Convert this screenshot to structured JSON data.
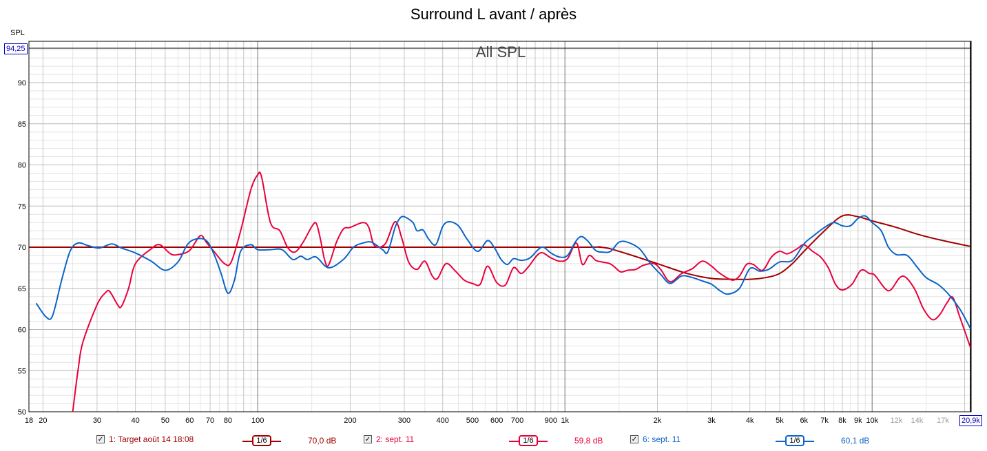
{
  "chart_data": {
    "type": "line",
    "title": "Surround L avant / après",
    "watermark": "All SPL",
    "ylabel": "SPL",
    "ylim": [
      50,
      94.25
    ],
    "ylim_top_label": "94,25",
    "y_ticks": [
      90,
      85,
      80,
      75,
      70,
      65,
      60,
      55,
      50
    ],
    "xlim": [
      18,
      20900
    ],
    "x_scale": "log",
    "xlim_right_label": "20,9k",
    "x_ticks": [
      {
        "v": 18,
        "label": "18"
      },
      {
        "v": 20,
        "label": "20"
      },
      {
        "v": 30,
        "label": "30"
      },
      {
        "v": 40,
        "label": "40"
      },
      {
        "v": 50,
        "label": "50"
      },
      {
        "v": 60,
        "label": "60"
      },
      {
        "v": 70,
        "label": "70"
      },
      {
        "v": 80,
        "label": "80"
      },
      {
        "v": 100,
        "label": "100"
      },
      {
        "v": 200,
        "label": "200"
      },
      {
        "v": 300,
        "label": "300"
      },
      {
        "v": 400,
        "label": "400"
      },
      {
        "v": 500,
        "label": "500"
      },
      {
        "v": 600,
        "label": "600"
      },
      {
        "v": 700,
        "label": "700"
      },
      {
        "v": 900,
        "label": "900"
      },
      {
        "v": 1000,
        "label": "1k"
      },
      {
        "v": 2000,
        "label": "2k"
      },
      {
        "v": 3000,
        "label": "3k"
      },
      {
        "v": 4000,
        "label": "4k"
      },
      {
        "v": 5000,
        "label": "5k"
      },
      {
        "v": 6000,
        "label": "6k"
      },
      {
        "v": 7000,
        "label": "7k"
      },
      {
        "v": 8000,
        "label": "8k"
      },
      {
        "v": 9000,
        "label": "9k"
      },
      {
        "v": 10000,
        "label": "10k"
      },
      {
        "v": 12000,
        "label": "12k",
        "faded": true
      },
      {
        "v": 14000,
        "label": "14k",
        "faded": true
      },
      {
        "v": 17000,
        "label": "17k",
        "faded": true
      }
    ],
    "grid": true,
    "series": [
      {
        "name": "1: Target août 14 18:08",
        "color": "#a00000",
        "smoothing": "1/6",
        "level": "70,0 dB",
        "points": [
          [
            18,
            70
          ],
          [
            100,
            70
          ],
          [
            1000,
            70
          ],
          [
            1300,
            70
          ],
          [
            1500,
            69.5
          ],
          [
            2000,
            68
          ],
          [
            2500,
            66.8
          ],
          [
            3000,
            66.2
          ],
          [
            3500,
            66.1
          ],
          [
            4000,
            66.1
          ],
          [
            4500,
            66.3
          ],
          [
            5000,
            66.8
          ],
          [
            5500,
            68
          ],
          [
            6000,
            69.5
          ],
          [
            7000,
            72
          ],
          [
            8000,
            73.8
          ],
          [
            9000,
            73.7
          ],
          [
            10000,
            73.2
          ],
          [
            12000,
            72.4
          ],
          [
            14000,
            71.6
          ],
          [
            17000,
            70.8
          ],
          [
            20900,
            70.1
          ]
        ]
      },
      {
        "name": "2: sept. 11",
        "color": "#e8003c",
        "smoothing": "1/6",
        "level": "59,8 dB",
        "points": [
          [
            25,
            50
          ],
          [
            26,
            55
          ],
          [
            27,
            58.5
          ],
          [
            30,
            63
          ],
          [
            32,
            64.5
          ],
          [
            33,
            64.6
          ],
          [
            35,
            63
          ],
          [
            36,
            62.8
          ],
          [
            38,
            65
          ],
          [
            40,
            68
          ],
          [
            45,
            69.8
          ],
          [
            48,
            70.3
          ],
          [
            52,
            69.2
          ],
          [
            55,
            69.1
          ],
          [
            60,
            69.6
          ],
          [
            65,
            71.4
          ],
          [
            68,
            70.6
          ],
          [
            72,
            69.5
          ],
          [
            78,
            68
          ],
          [
            82,
            68.2
          ],
          [
            88,
            72
          ],
          [
            95,
            77
          ],
          [
            100,
            78.8
          ],
          [
            103,
            78.5
          ],
          [
            110,
            73
          ],
          [
            118,
            72
          ],
          [
            125,
            70
          ],
          [
            132,
            69.4
          ],
          [
            140,
            70.5
          ],
          [
            150,
            72.5
          ],
          [
            155,
            72.9
          ],
          [
            160,
            71
          ],
          [
            165,
            68.5
          ],
          [
            170,
            67.8
          ],
          [
            180,
            70.5
          ],
          [
            190,
            72.2
          ],
          [
            200,
            72.4
          ],
          [
            220,
            73
          ],
          [
            230,
            72.4
          ],
          [
            240,
            70.2
          ],
          [
            260,
            70.4
          ],
          [
            280,
            73.1
          ],
          [
            295,
            71
          ],
          [
            310,
            68.2
          ],
          [
            330,
            67.3
          ],
          [
            350,
            68.3
          ],
          [
            370,
            66.5
          ],
          [
            385,
            66.2
          ],
          [
            410,
            68
          ],
          [
            440,
            67.1
          ],
          [
            470,
            66
          ],
          [
            500,
            65.6
          ],
          [
            530,
            65.5
          ],
          [
            560,
            67.7
          ],
          [
            600,
            65.7
          ],
          [
            640,
            65.4
          ],
          [
            680,
            67.5
          ],
          [
            720,
            66.8
          ],
          [
            760,
            67.6
          ],
          [
            830,
            69.3
          ],
          [
            900,
            68.7
          ],
          [
            960,
            68.3
          ],
          [
            1020,
            68.6
          ],
          [
            1090,
            70.5
          ],
          [
            1140,
            67.9
          ],
          [
            1200,
            69
          ],
          [
            1260,
            68.4
          ],
          [
            1320,
            68.2
          ],
          [
            1400,
            68
          ],
          [
            1450,
            67.6
          ],
          [
            1520,
            67
          ],
          [
            1600,
            67.2
          ],
          [
            1700,
            67.3
          ],
          [
            1800,
            67.8
          ],
          [
            1950,
            68
          ],
          [
            2050,
            67.3
          ],
          [
            2200,
            65.8
          ],
          [
            2400,
            66.8
          ],
          [
            2600,
            67.4
          ],
          [
            2800,
            68.3
          ],
          [
            3000,
            67.7
          ],
          [
            3200,
            66.8
          ],
          [
            3500,
            66
          ],
          [
            3700,
            66.5
          ],
          [
            3900,
            67.9
          ],
          [
            4100,
            67.9
          ],
          [
            4400,
            67.2
          ],
          [
            4700,
            68.8
          ],
          [
            5000,
            69.5
          ],
          [
            5300,
            69.2
          ],
          [
            5700,
            69.8
          ],
          [
            6000,
            70.3
          ],
          [
            6400,
            69.5
          ],
          [
            6800,
            68.8
          ],
          [
            7200,
            67.5
          ],
          [
            7600,
            65.5
          ],
          [
            8000,
            64.8
          ],
          [
            8600,
            65.5
          ],
          [
            9200,
            67.2
          ],
          [
            9800,
            66.8
          ],
          [
            10200,
            66.6
          ],
          [
            11000,
            65
          ],
          [
            11500,
            64.8
          ],
          [
            12300,
            66.3
          ],
          [
            12900,
            66.3
          ],
          [
            13800,
            64.8
          ],
          [
            14700,
            62.5
          ],
          [
            15700,
            61.2
          ],
          [
            16600,
            61.8
          ],
          [
            17500,
            63.2
          ],
          [
            18300,
            63.9
          ],
          [
            19300,
            61.5
          ],
          [
            20900,
            57.8
          ]
        ]
      },
      {
        "name": "6: sept. 11",
        "color": "#0a64c8",
        "smoothing": "1/6",
        "level": "60,1 dB",
        "points": [
          [
            19,
            63.2
          ],
          [
            20.5,
            61.5
          ],
          [
            21.5,
            61.7
          ],
          [
            23,
            66
          ],
          [
            24.5,
            69.5
          ],
          [
            26,
            70.5
          ],
          [
            28,
            70.2
          ],
          [
            30.5,
            69.9
          ],
          [
            33.5,
            70.4
          ],
          [
            36,
            69.9
          ],
          [
            40,
            69.3
          ],
          [
            45,
            68.3
          ],
          [
            50,
            67.2
          ],
          [
            55,
            68.2
          ],
          [
            59,
            70.3
          ],
          [
            63,
            71
          ],
          [
            68,
            70.8
          ],
          [
            72,
            69.2
          ],
          [
            76,
            66.8
          ],
          [
            80,
            64.4
          ],
          [
            84,
            66
          ],
          [
            88,
            69.5
          ],
          [
            95,
            70.3
          ],
          [
            100,
            69.7
          ],
          [
            110,
            69.7
          ],
          [
            120,
            69.7
          ],
          [
            130,
            68.5
          ],
          [
            138,
            68.9
          ],
          [
            145,
            68.5
          ],
          [
            155,
            68.8
          ],
          [
            170,
            67.5
          ],
          [
            190,
            68.5
          ],
          [
            205,
            70
          ],
          [
            220,
            70.5
          ],
          [
            235,
            70.6
          ],
          [
            255,
            69.7
          ],
          [
            265,
            69.4
          ],
          [
            280,
            72.4
          ],
          [
            290,
            73.5
          ],
          [
            300,
            73.7
          ],
          [
            320,
            73
          ],
          [
            330,
            72
          ],
          [
            345,
            72.1
          ],
          [
            360,
            71
          ],
          [
            380,
            70.3
          ],
          [
            400,
            72.5
          ],
          [
            420,
            73.1
          ],
          [
            450,
            72.6
          ],
          [
            480,
            71
          ],
          [
            520,
            69.5
          ],
          [
            560,
            70.8
          ],
          [
            590,
            69.9
          ],
          [
            620,
            68.5
          ],
          [
            650,
            67.9
          ],
          [
            680,
            68.6
          ],
          [
            720,
            68.4
          ],
          [
            770,
            68.7
          ],
          [
            840,
            70
          ],
          [
            900,
            69.3
          ],
          [
            960,
            68.8
          ],
          [
            1020,
            69
          ],
          [
            1080,
            70.6
          ],
          [
            1130,
            71.3
          ],
          [
            1190,
            70.7
          ],
          [
            1260,
            69.6
          ],
          [
            1330,
            69.4
          ],
          [
            1410,
            69.5
          ],
          [
            1500,
            70.6
          ],
          [
            1600,
            70.6
          ],
          [
            1750,
            69.8
          ],
          [
            1900,
            68
          ],
          [
            2050,
            66.7
          ],
          [
            2200,
            65.6
          ],
          [
            2400,
            66.5
          ],
          [
            2600,
            66.3
          ],
          [
            2800,
            65.9
          ],
          [
            3000,
            65.5
          ],
          [
            3200,
            64.7
          ],
          [
            3400,
            64.3
          ],
          [
            3700,
            65
          ],
          [
            4000,
            67.4
          ],
          [
            4300,
            67.1
          ],
          [
            4600,
            67.3
          ],
          [
            5000,
            68.2
          ],
          [
            5500,
            68.4
          ],
          [
            6000,
            70.4
          ],
          [
            6500,
            71.5
          ],
          [
            7000,
            72.4
          ],
          [
            7500,
            73
          ],
          [
            8000,
            72.6
          ],
          [
            8500,
            72.6
          ],
          [
            9000,
            73.5
          ],
          [
            9500,
            73.8
          ],
          [
            10000,
            73
          ],
          [
            10700,
            72
          ],
          [
            11300,
            70
          ],
          [
            12000,
            69.1
          ],
          [
            13000,
            69
          ],
          [
            14000,
            67.6
          ],
          [
            15000,
            66.3
          ],
          [
            16500,
            65.4
          ],
          [
            18000,
            64
          ],
          [
            19500,
            62.2
          ],
          [
            20900,
            60.1
          ]
        ]
      }
    ]
  },
  "legend": [
    {
      "checked": "✓",
      "name": "1: Target août 14 18:08",
      "smoothing": "1/6",
      "level": "70,0 dB",
      "color": "#a00000"
    },
    {
      "checked": "✓",
      "name": "2: sept. 11",
      "smoothing": "1/6",
      "level": "59,8 dB",
      "color": "#e8003c"
    },
    {
      "checked": "✓",
      "name": "6: sept. 11",
      "smoothing": "1/6",
      "level": "60,1 dB",
      "color": "#0a64c8"
    }
  ]
}
